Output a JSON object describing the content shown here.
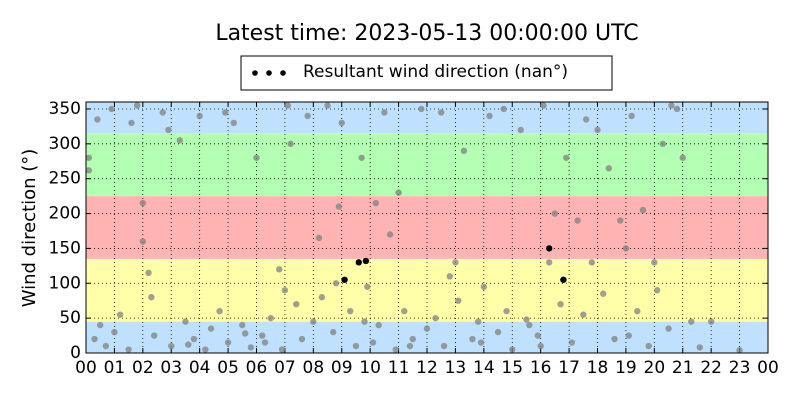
{
  "chart_data": {
    "type": "scatter",
    "title": "Latest time: 2023-05-13 00:00:00 UTC",
    "y_label": "Wind direction (°)",
    "xlim": [
      0,
      24
    ],
    "ylim": [
      0,
      360
    ],
    "xticks": [
      {
        "value": 0,
        "label": "00"
      },
      {
        "value": 1,
        "label": "01"
      },
      {
        "value": 2,
        "label": "02"
      },
      {
        "value": 3,
        "label": "03"
      },
      {
        "value": 4,
        "label": "04"
      },
      {
        "value": 5,
        "label": "05"
      },
      {
        "value": 6,
        "label": "06"
      },
      {
        "value": 7,
        "label": "07"
      },
      {
        "value": 8,
        "label": "08"
      },
      {
        "value": 9,
        "label": "09"
      },
      {
        "value": 10,
        "label": "10"
      },
      {
        "value": 11,
        "label": "11"
      },
      {
        "value": 12,
        "label": "12"
      },
      {
        "value": 13,
        "label": "13"
      },
      {
        "value": 14,
        "label": "14"
      },
      {
        "value": 15,
        "label": "15"
      },
      {
        "value": 16,
        "label": "16"
      },
      {
        "value": 17,
        "label": "17"
      },
      {
        "value": 18,
        "label": "18"
      },
      {
        "value": 19,
        "label": "19"
      },
      {
        "value": 20,
        "label": "20"
      },
      {
        "value": 21,
        "label": "21"
      },
      {
        "value": 22,
        "label": "22"
      },
      {
        "value": 23,
        "label": "23"
      },
      {
        "value": 24,
        "label": "00"
      }
    ],
    "yticks": [
      0,
      50,
      100,
      150,
      200,
      250,
      300,
      350
    ],
    "grid": true,
    "legend": "top",
    "bands": [
      {
        "from": 0,
        "to": 45,
        "color": "#bfe1ff"
      },
      {
        "from": 45,
        "to": 135,
        "color": "#ffffaa"
      },
      {
        "from": 135,
        "to": 225,
        "color": "#ffb3b3"
      },
      {
        "from": 225,
        "to": 315,
        "color": "#b3ffb3"
      },
      {
        "from": 315,
        "to": 360,
        "color": "#bfe1ff"
      }
    ],
    "series": [
      {
        "name": "Resultant wind direction (nan°)",
        "color": "#000000",
        "x": [
          9.1,
          9.6,
          9.85,
          16.8,
          16.3
        ],
        "values": [
          105,
          130,
          132,
          105,
          150
        ]
      },
      {
        "color": "#808080",
        "x": [
          0.1,
          0.1,
          0.3,
          0.5,
          0.7,
          0.9,
          1.0,
          1.2,
          1.5,
          1.8,
          2.0,
          2.0,
          2.2,
          2.3,
          2.4,
          2.7,
          3.0,
          3.3,
          3.5,
          3.8,
          4.0,
          4.2,
          4.4,
          4.7,
          5.0,
          5.2,
          5.5,
          5.8,
          6.0,
          6.2,
          6.5,
          6.8,
          6.9,
          7.0,
          7.2,
          7.4,
          7.6,
          7.8,
          8.0,
          8.2,
          8.3,
          8.5,
          8.7,
          8.8,
          9.0,
          9.3,
          9.5,
          9.7,
          9.9,
          10.2,
          10.3,
          10.5,
          10.7,
          10.9,
          11.0,
          11.2,
          11.5,
          11.8,
          12.0,
          12.3,
          12.6,
          12.8,
          13.0,
          13.1,
          13.3,
          13.6,
          13.8,
          14.0,
          14.2,
          14.5,
          14.8,
          15.0,
          15.3,
          15.6,
          15.9,
          16.1,
          16.3,
          16.5,
          16.7,
          16.9,
          17.1,
          17.3,
          17.5,
          17.8,
          18.0,
          18.2,
          18.4,
          18.6,
          18.8,
          19.0,
          19.2,
          19.4,
          19.6,
          19.8,
          20.0,
          20.1,
          20.3,
          20.5,
          20.8,
          21.0,
          21.3,
          21.6,
          22.0,
          23.0,
          0.4,
          1.6,
          2.9,
          4.9,
          6.3,
          7.1,
          8.9,
          10.1,
          11.4,
          12.5,
          14.7,
          16.0,
          17.6,
          19.1,
          20.6,
          3.6,
          5.6,
          9.8,
          13.9,
          15.5
        ],
        "values": [
          280,
          262,
          20,
          40,
          10,
          350,
          30,
          55,
          5,
          355,
          215,
          160,
          115,
          80,
          25,
          345,
          10,
          305,
          45,
          20,
          340,
          5,
          35,
          60,
          15,
          330,
          40,
          8,
          280,
          25,
          50,
          120,
          5,
          90,
          300,
          70,
          20,
          340,
          45,
          165,
          80,
          355,
          30,
          100,
          330,
          60,
          10,
          280,
          95,
          215,
          40,
          345,
          170,
          5,
          230,
          60,
          20,
          350,
          35,
          50,
          10,
          110,
          130,
          75,
          290,
          20,
          45,
          95,
          340,
          30,
          60,
          5,
          320,
          40,
          25,
          355,
          130,
          200,
          70,
          280,
          15,
          190,
          55,
          130,
          320,
          85,
          265,
          20,
          190,
          150,
          340,
          60,
          205,
          10,
          130,
          90,
          300,
          35,
          350,
          280,
          45,
          8,
          45,
          4,
          335,
          330,
          320,
          345,
          15,
          355,
          210,
          15,
          10,
          345,
          350,
          10,
          335,
          25,
          355,
          12,
          28,
          45,
          15,
          48
        ]
      }
    ]
  }
}
